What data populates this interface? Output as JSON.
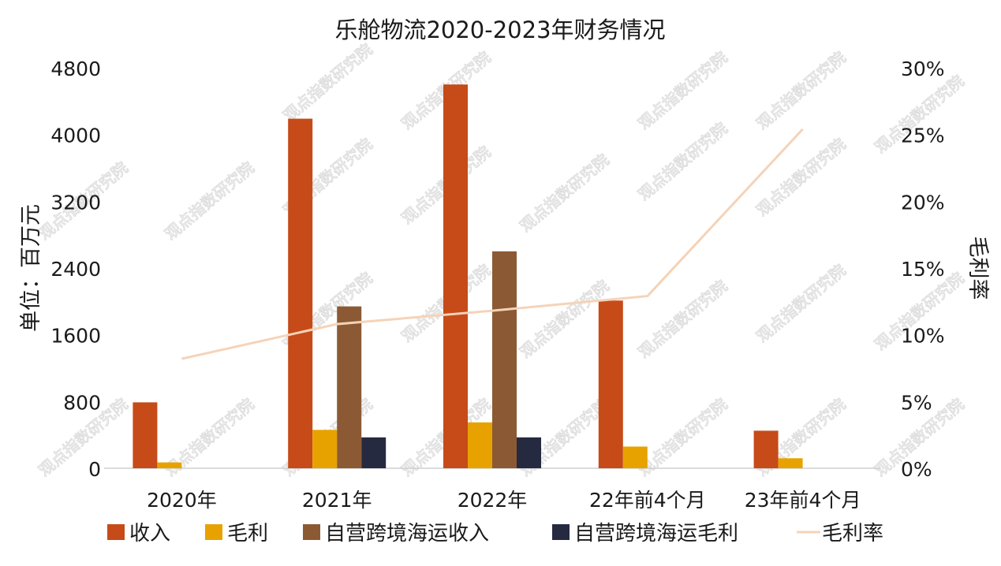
{
  "chart_data": {
    "type": "bar",
    "title": "乐舱物流2020-2023年财务情况",
    "ylabel": "单位：百万元",
    "y2label": "毛利率",
    "ylim": [
      0,
      4800
    ],
    "yticks": [
      0,
      800,
      1600,
      2400,
      3200,
      4000,
      4800
    ],
    "y2lim": [
      0,
      30
    ],
    "y2ticks": [
      "0%",
      "5%",
      "10%",
      "15%",
      "20%",
      "25%",
      "30%"
    ],
    "y2tick_values": [
      0,
      5,
      10,
      15,
      20,
      25,
      30
    ],
    "categories": [
      "2020年",
      "2021年",
      "2022年",
      "22年前4个月",
      "23年前4个月"
    ],
    "series": [
      {
        "name": "收入",
        "type": "bar",
        "color": "#C64B18",
        "values": [
          790,
          4190,
          4600,
          2010,
          450
        ]
      },
      {
        "name": "毛利",
        "type": "bar",
        "color": "#E8A200",
        "values": [
          70,
          460,
          550,
          260,
          120
        ]
      },
      {
        "name": "自营跨境海运收入",
        "type": "bar",
        "color": "#8B5A34",
        "values": [
          null,
          1940,
          2600,
          null,
          null
        ]
      },
      {
        "name": "自营跨境海运毛利",
        "type": "bar",
        "color": "#262A40",
        "values": [
          null,
          370,
          370,
          null,
          null
        ]
      },
      {
        "name": "毛利率",
        "type": "line",
        "axis": "right",
        "color": "#F5D3B8",
        "values": [
          8.2,
          10.8,
          11.8,
          12.9,
          25.4
        ]
      }
    ],
    "legend_position": "bottom",
    "grid": false,
    "watermark": "观点指数研究院"
  }
}
